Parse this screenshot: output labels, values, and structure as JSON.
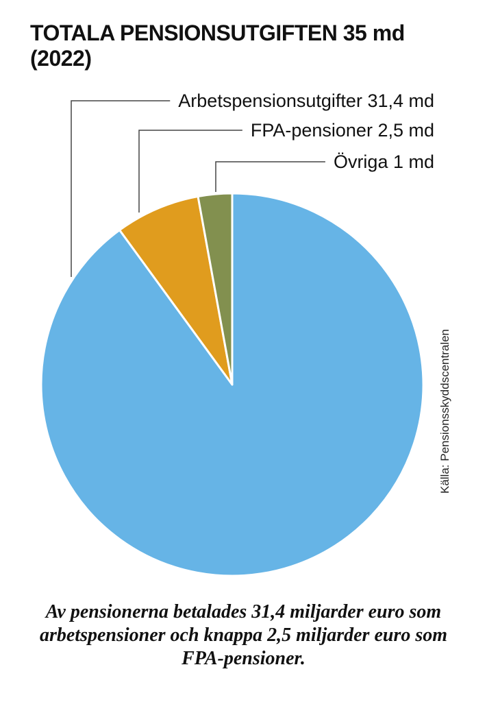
{
  "title": "TOTALA PENSIONSUTGIFTEN 35 md (2022)",
  "source": "Källa: Pensionsskyddscentralen",
  "caption": "Av pensionerna betalades 31,4 miljarder euro som arbetspensioner och knappa 2,5 miljarder euro som FPA-pensioner.",
  "chart_data": {
    "type": "pie",
    "title": "TOTALA PENSIONSUTGIFTEN 35 md (2022)",
    "unit": "md",
    "total": 35,
    "slices": [
      {
        "label": "Arbetspensionsutgifter 31,4 md",
        "value": 31.4,
        "color": "#66b4e6"
      },
      {
        "label": "FPA-pensioner 2,5 md",
        "value": 2.5,
        "color": "#e09c1e"
      },
      {
        "label": "Övriga 1 md",
        "value": 1,
        "color": "#82904f"
      }
    ],
    "start_angle": "12 o'clock",
    "direction": "clockwise"
  }
}
